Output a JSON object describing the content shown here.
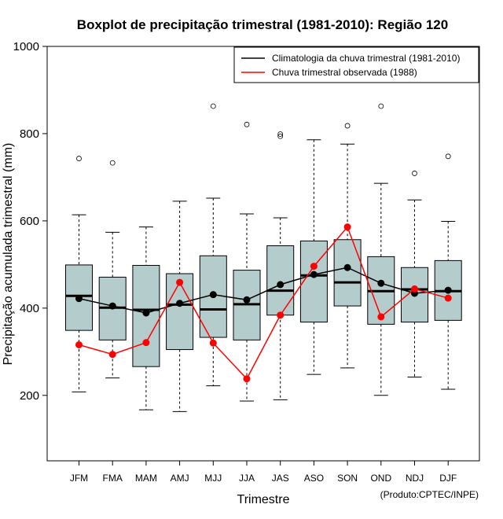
{
  "chart_data": {
    "type": "boxplot",
    "title": "Boxplot de precipitação trimestral (1981-2010): Região 120",
    "xlabel": "Trimestre",
    "ylabel": "Precipitação acumulada trimestral (mm)",
    "ylim": [
      50,
      1000
    ],
    "yticks": [
      200,
      400,
      600,
      800,
      1000
    ],
    "categories": [
      "JFM",
      "FMA",
      "MAM",
      "AMJ",
      "MJJ",
      "JJA",
      "JAS",
      "ASO",
      "SON",
      "OND",
      "NDJ",
      "DJF"
    ],
    "boxes": [
      {
        "whisker_low": 208,
        "q1": 349,
        "median": 428,
        "q3": 499,
        "whisker_high": 614,
        "outliers": [
          743
        ]
      },
      {
        "whisker_low": 240,
        "q1": 327,
        "median": 401,
        "q3": 471,
        "whisker_high": 574,
        "outliers": [
          733
        ]
      },
      {
        "whisker_low": 167,
        "q1": 266,
        "median": 396,
        "q3": 498,
        "whisker_high": 586,
        "outliers": []
      },
      {
        "whisker_low": 163,
        "q1": 305,
        "median": 408,
        "q3": 479,
        "whisker_high": 645,
        "outliers": []
      },
      {
        "whisker_low": 222,
        "q1": 333,
        "median": 397,
        "q3": 520,
        "whisker_high": 652,
        "outliers": [
          863
        ]
      },
      {
        "whisker_low": 187,
        "q1": 327,
        "median": 409,
        "q3": 487,
        "whisker_high": 616,
        "outliers": [
          821
        ]
      },
      {
        "whisker_low": 190,
        "q1": 384,
        "median": 440,
        "q3": 543,
        "whisker_high": 607,
        "outliers": [
          794,
          799
        ]
      },
      {
        "whisker_low": 248,
        "q1": 368,
        "median": 475,
        "q3": 554,
        "whisker_high": 786,
        "outliers": []
      },
      {
        "whisker_low": 263,
        "q1": 405,
        "median": 459,
        "q3": 557,
        "whisker_high": 776,
        "outliers": [
          818
        ]
      },
      {
        "whisker_low": 200,
        "q1": 363,
        "median": 439,
        "q3": 518,
        "whisker_high": 686,
        "outliers": [
          863
        ]
      },
      {
        "whisker_low": 242,
        "q1": 368,
        "median": 443,
        "q3": 493,
        "whisker_high": 648,
        "outliers": [
          709
        ]
      },
      {
        "whisker_low": 214,
        "q1": 372,
        "median": 439,
        "q3": 509,
        "whisker_high": 599,
        "outliers": [
          748
        ]
      }
    ],
    "series": [
      {
        "name": "Climatologia da chuva trimestral (1981-2010)",
        "color": "#000000",
        "values": [
          422,
          405,
          389,
          411,
          431,
          419,
          454,
          477,
          493,
          457,
          434,
          441
        ]
      },
      {
        "name": "Chuva trimestral observada (1988)",
        "color": "#ff0000",
        "values": [
          316,
          294,
          321,
          459,
          320,
          238,
          384,
          496,
          586,
          380,
          444,
          423
        ]
      }
    ],
    "legend_position": "top-right",
    "box_fill": "#b4cccc",
    "source_note": "(Produto:CPTEC/INPE)"
  }
}
